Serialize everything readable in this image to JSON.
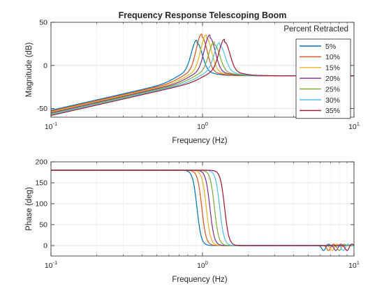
{
  "figure": {
    "title": "Frequency Response Telescoping Boom"
  },
  "chart_data": [
    {
      "type": "line",
      "xscale": "log",
      "xlim": [
        0.1,
        10
      ],
      "ylim": [
        -60,
        50
      ],
      "xlabel": "Frequency (Hz)",
      "ylabel": "Magnitude (dB)",
      "grid": true,
      "x_ticks": [
        0.1,
        1,
        10
      ],
      "x_tick_labels": [
        {
          "base": "10",
          "exp": "-1"
        },
        {
          "base": "10",
          "exp": "0"
        },
        {
          "base": "10",
          "exp": "1"
        }
      ],
      "y_ticks": [
        -50,
        0,
        50
      ],
      "y_tick_labels": [
        "-50",
        "0",
        "50"
      ],
      "legend": {
        "title": "Percent Retracted",
        "position": "top-right",
        "entries": [
          "5%",
          "10%",
          "15%",
          "20%",
          "25%",
          "30%",
          "35%"
        ]
      },
      "series": [
        {
          "name": "5%",
          "color": "#0072BD",
          "resonance_hz": 0.92,
          "peak_db": 24,
          "low_freq_db": -52,
          "high_freq_db": -12
        },
        {
          "name": "10%",
          "color": "#D95319",
          "resonance_hz": 0.99,
          "peak_db": 31,
          "low_freq_db": -53,
          "high_freq_db": -12
        },
        {
          "name": "15%",
          "color": "#EDB120",
          "resonance_hz": 1.06,
          "peak_db": 30,
          "low_freq_db": -54,
          "high_freq_db": -12
        },
        {
          "name": "20%",
          "color": "#7E2F8E",
          "resonance_hz": 1.12,
          "peak_db": 30,
          "low_freq_db": -55,
          "high_freq_db": -12
        },
        {
          "name": "25%",
          "color": "#77AC30",
          "resonance_hz": 1.2,
          "peak_db": 22,
          "low_freq_db": -56,
          "high_freq_db": -12
        },
        {
          "name": "30%",
          "color": "#4DBEEE",
          "resonance_hz": 1.3,
          "peak_db": 21,
          "low_freq_db": -57,
          "high_freq_db": -12
        },
        {
          "name": "35%",
          "color": "#A2142F",
          "resonance_hz": 1.4,
          "peak_db": 25,
          "low_freq_db": -58,
          "high_freq_db": -12
        }
      ]
    },
    {
      "type": "line",
      "xscale": "log",
      "xlim": [
        0.1,
        10
      ],
      "ylim": [
        -25,
        200
      ],
      "xlabel": "Frequency (Hz)",
      "ylabel": "Phase (deg)",
      "grid": true,
      "x_ticks": [
        0.1,
        1,
        10
      ],
      "x_tick_labels": [
        {
          "base": "10",
          "exp": "-1"
        },
        {
          "base": "10",
          "exp": "0"
        },
        {
          "base": "10",
          "exp": "1"
        }
      ],
      "y_ticks": [
        0,
        50,
        100,
        150,
        200
      ],
      "y_tick_labels": [
        "0",
        "50",
        "100",
        "150",
        "200"
      ],
      "series": [
        {
          "name": "5%",
          "color": "#0072BD",
          "low_freq_deg": 180,
          "high_freq_deg": 0,
          "transition_hz": 0.92,
          "dip_hz": 6.3
        },
        {
          "name": "10%",
          "color": "#D95319",
          "low_freq_deg": 180,
          "high_freq_deg": 0,
          "transition_hz": 0.99,
          "dip_hz": 6.8
        },
        {
          "name": "15%",
          "color": "#EDB120",
          "low_freq_deg": 180,
          "high_freq_deg": 0,
          "transition_hz": 1.06,
          "dip_hz": 7.2
        },
        {
          "name": "20%",
          "color": "#7E2F8E",
          "low_freq_deg": 180,
          "high_freq_deg": 0,
          "transition_hz": 1.12,
          "dip_hz": 7.6
        },
        {
          "name": "25%",
          "color": "#77AC30",
          "low_freq_deg": 180,
          "high_freq_deg": 0,
          "transition_hz": 1.2,
          "dip_hz": 8.0
        },
        {
          "name": "30%",
          "color": "#4DBEEE",
          "low_freq_deg": 180,
          "high_freq_deg": 0,
          "transition_hz": 1.3,
          "dip_hz": 8.5
        },
        {
          "name": "35%",
          "color": "#A2142F",
          "low_freq_deg": 180,
          "high_freq_deg": 0,
          "transition_hz": 1.4,
          "dip_hz": 9.0
        }
      ]
    }
  ]
}
